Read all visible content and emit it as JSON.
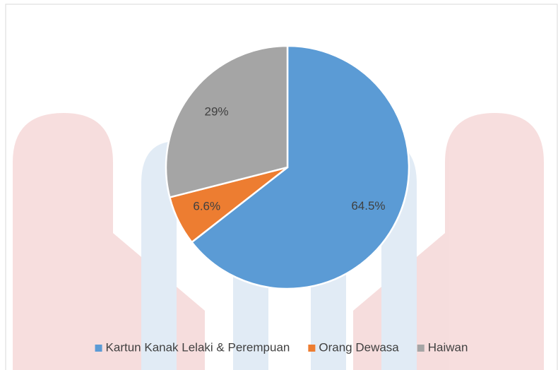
{
  "chart_data": {
    "type": "pie",
    "categories": [
      "Kartun Kanak Lelaki & Perempuan",
      "Orang Dewasa",
      "Haiwan"
    ],
    "values": [
      64.5,
      6.6,
      29
    ],
    "value_labels": [
      "64.5%",
      "6.6%",
      "29%"
    ],
    "colors": [
      "#5b9bd5",
      "#ed7d31",
      "#a5a5a5"
    ],
    "legend": "bottom"
  }
}
